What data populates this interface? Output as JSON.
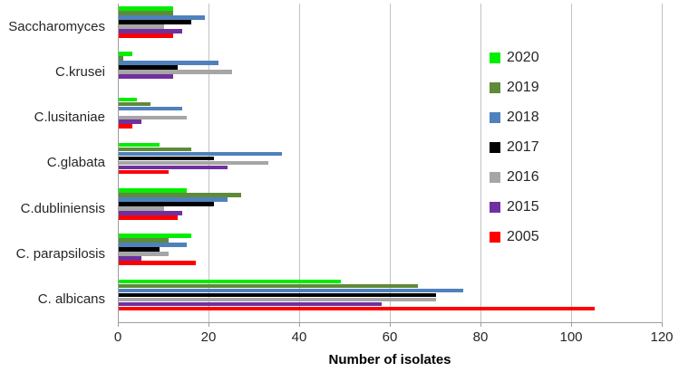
{
  "chart_data": {
    "type": "bar",
    "orientation": "horizontal",
    "title": "",
    "xlabel": "Number of isolates",
    "ylabel": "",
    "xlim": [
      0,
      120
    ],
    "xticks": [
      0,
      20,
      40,
      60,
      80,
      100,
      120
    ],
    "grid": true,
    "legend_position": "upper-right",
    "categories": [
      "Saccharomyces",
      "C.krusei",
      "C.lusitaniae",
      "C.glabata",
      "C.dubliniensis",
      "C. parapsilosis",
      "C. albicans"
    ],
    "series": [
      {
        "name": "2020",
        "color": "#00ee00",
        "values": [
          12,
          3,
          4,
          9,
          15,
          16,
          49
        ]
      },
      {
        "name": "2019",
        "color": "#5e8a3a",
        "values": [
          12,
          1,
          7,
          16,
          27,
          11,
          66
        ]
      },
      {
        "name": "2018",
        "color": "#4f81bd",
        "values": [
          19,
          22,
          14,
          36,
          24,
          15,
          76
        ]
      },
      {
        "name": "2017",
        "color": "#000000",
        "values": [
          16,
          13,
          0,
          21,
          21,
          9,
          70
        ]
      },
      {
        "name": "2016",
        "color": "#a6a6a6",
        "values": [
          10,
          25,
          15,
          33,
          10,
          11,
          70
        ]
      },
      {
        "name": "2015",
        "color": "#7030a0",
        "values": [
          14,
          12,
          5,
          24,
          14,
          5,
          58
        ]
      },
      {
        "name": "2005",
        "color": "#ff0000",
        "values": [
          12,
          0,
          3,
          11,
          13,
          17,
          105
        ]
      }
    ],
    "colors": {
      "gridline": "#c2c2c2",
      "axis": "#9d9d9d",
      "text": "#262626"
    }
  }
}
